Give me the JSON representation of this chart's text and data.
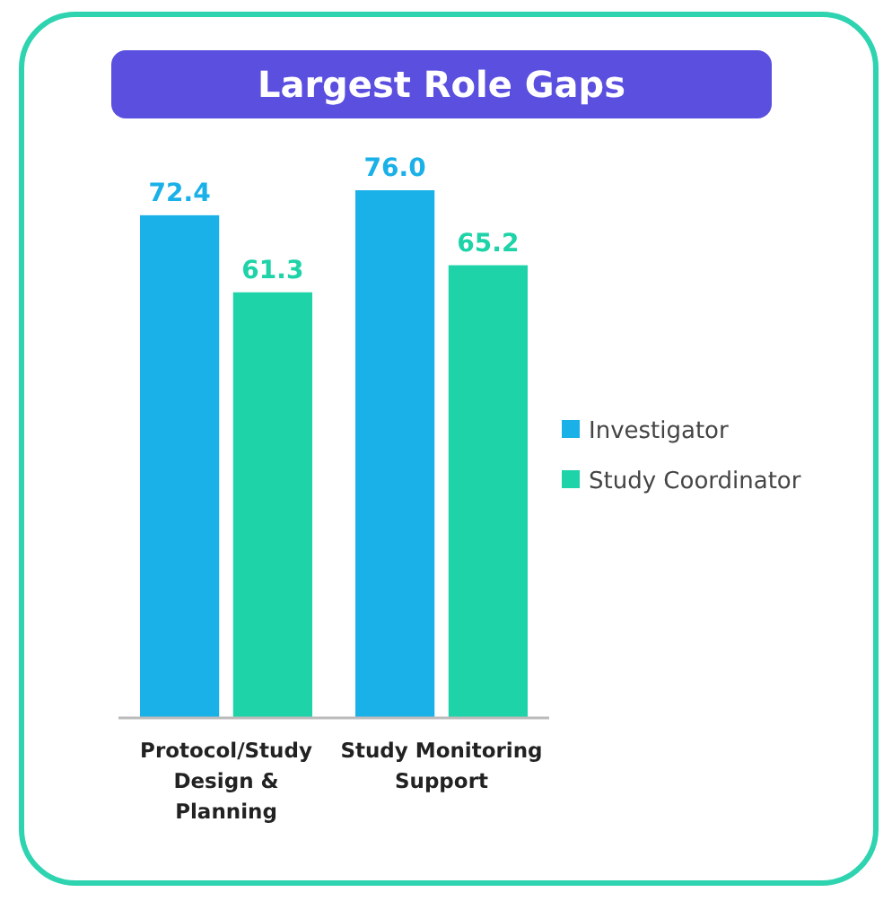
{
  "chart_data": {
    "type": "bar",
    "title": "Largest Role Gaps",
    "categories": [
      "Protocol/Study Design & Planning",
      "Study Monitoring Support"
    ],
    "series": [
      {
        "name": "Investigator",
        "color": "#1ab0e8",
        "values": [
          72.4,
          76.0
        ],
        "value_labels": [
          "72.4",
          "76.0"
        ]
      },
      {
        "name": "Study Coordinator",
        "color": "#1dd3a7",
        "values": [
          61.3,
          65.2
        ],
        "value_labels": [
          "61.3",
          "65.2"
        ]
      }
    ],
    "legend": "right"
  }
}
